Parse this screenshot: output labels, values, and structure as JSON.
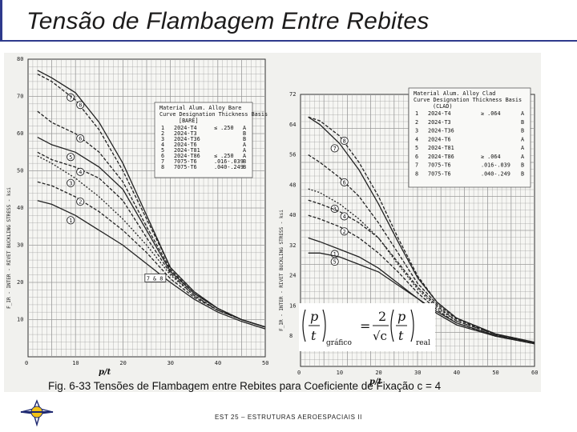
{
  "slide": {
    "title": "Tensão de Flambagem Entre Rebites",
    "caption": "Fig. 6-33   Tensões de Flambagem entre Rebites para Coeficiente de Fixação c = 4",
    "footer": "EST 25 – ESTRUTURAS AEROESPACIAIS II"
  },
  "colors": {
    "accent": "#2e3a8c",
    "grid": "#9a9a9a",
    "curve": "#222222"
  },
  "chart_data": [
    {
      "type": "line",
      "ylabel": "F_IR - INTER - RIVET BUCKLING STRESS - ksi",
      "xlabel": "p/t",
      "xlim": [
        0,
        50
      ],
      "ylim": [
        0,
        80
      ],
      "xticks": [
        0,
        10,
        20,
        30,
        40,
        50
      ],
      "yticks": [
        10,
        20,
        30,
        40,
        50,
        60,
        70,
        80
      ],
      "grid": true,
      "legend": {
        "position": "top-right",
        "header": [
          "Material Alum. Alloy Bare",
          "Curve  Designation  Thickness  Basis",
          "[BARE]"
        ],
        "rows": [
          {
            "curve": "1",
            "designation": "2024-T4",
            "thickness": "≤ .250",
            "basis": "A"
          },
          {
            "curve": "2",
            "designation": "2024-T3",
            "thickness": "",
            "basis": "B"
          },
          {
            "curve": "3",
            "designation": "2024-T36",
            "thickness": "",
            "basis": "B"
          },
          {
            "curve": "4",
            "designation": "2024-T6",
            "thickness": "",
            "basis": "A"
          },
          {
            "curve": "5",
            "designation": "2024-T81",
            "thickness": "",
            "basis": "A"
          },
          {
            "curve": "6",
            "designation": "2024-T86",
            "thickness": "≤ .250",
            "basis": "A"
          },
          {
            "curve": "7",
            "designation": "7075-T6",
            "thickness": ".016-.039",
            "basis": "B"
          },
          {
            "curve": "8",
            "designation": "7075-T6",
            "thickness": ".040-.249",
            "basis": "B"
          }
        ]
      },
      "series": [
        {
          "name": "1",
          "x": [
            2,
            5,
            10,
            15,
            20,
            25,
            30,
            35,
            40,
            45,
            50
          ],
          "y": [
            42,
            41,
            38,
            34,
            30,
            25,
            20,
            15.5,
            12,
            9.5,
            7.5
          ]
        },
        {
          "name": "2",
          "x": [
            2,
            5,
            10,
            15,
            20,
            25,
            30,
            35,
            40,
            45,
            50
          ],
          "y": [
            47,
            46,
            43,
            39,
            34,
            28,
            21,
            16,
            12.5,
            10,
            8
          ]
        },
        {
          "name": "3",
          "x": [
            2,
            5,
            10,
            15,
            20,
            25,
            30,
            35,
            40,
            45,
            50
          ],
          "y": [
            54,
            52,
            48,
            43,
            37,
            30,
            22,
            16.5,
            12.5,
            10,
            8
          ]
        },
        {
          "name": "4",
          "x": [
            2,
            5,
            10,
            15,
            20,
            25,
            30,
            35,
            40,
            45,
            50
          ],
          "y": [
            55,
            53,
            51,
            48,
            42,
            32,
            22.5,
            16.5,
            12.5,
            10,
            8
          ]
        },
        {
          "name": "5",
          "x": [
            2,
            5,
            10,
            15,
            20,
            25,
            30,
            35,
            40,
            45,
            50
          ],
          "y": [
            59,
            57,
            55,
            51,
            45,
            34,
            23,
            17,
            13,
            10,
            8
          ]
        },
        {
          "name": "6",
          "x": [
            2,
            5,
            10,
            15,
            20,
            25,
            30,
            35,
            40,
            45,
            50
          ],
          "y": [
            66,
            63,
            60,
            55,
            47,
            35,
            23.5,
            17,
            13,
            10,
            8
          ]
        },
        {
          "name": "7",
          "x": [
            2,
            5,
            10,
            15,
            20,
            25,
            30,
            35,
            40,
            45,
            50
          ],
          "y": [
            77,
            75,
            71,
            63,
            52,
            38,
            24,
            17.5,
            13,
            10,
            8
          ]
        },
        {
          "name": "8",
          "x": [
            2,
            5,
            10,
            15,
            20,
            25,
            30,
            35,
            40,
            45,
            50
          ],
          "y": [
            76,
            74,
            69,
            61,
            50,
            37,
            24,
            17.5,
            13,
            10,
            8
          ]
        }
      ],
      "marker": "7 & 8"
    },
    {
      "type": "line",
      "ylabel": "F_IR - INTER - RIVET BUCKLING STRESS - ksi",
      "xlabel": "p/t",
      "xlim": [
        0,
        60
      ],
      "ylim": [
        0,
        72
      ],
      "xticks": [
        0,
        10,
        20,
        30,
        40,
        50,
        60
      ],
      "yticks": [
        8,
        16,
        24,
        32,
        40,
        48,
        56,
        64,
        72
      ],
      "grid": true,
      "legend": {
        "position": "top-right",
        "header": [
          "Material Alum. Alloy Clad",
          "Curve  Designation  Thickness  Basis",
          "(CLAD)"
        ],
        "rows": [
          {
            "curve": "1",
            "designation": "2024-T4",
            "thickness": "≥ .064",
            "basis": "A"
          },
          {
            "curve": "2",
            "designation": "2024-T3",
            "thickness": "",
            "basis": "B"
          },
          {
            "curve": "3",
            "designation": "2024-T36",
            "thickness": "",
            "basis": "B"
          },
          {
            "curve": "4",
            "designation": "2024-T6",
            "thickness": "",
            "basis": "A"
          },
          {
            "curve": "5",
            "designation": "2024-T81",
            "thickness": "",
            "basis": "A"
          },
          {
            "curve": "6",
            "designation": "2024-T86",
            "thickness": "≥ .064",
            "basis": "A"
          },
          {
            "curve": "7",
            "designation": "7075-T6",
            "thickness": ".016-.039",
            "basis": "B"
          },
          {
            "curve": "8",
            "designation": "7075-T6",
            "thickness": ".040-.249",
            "basis": "B"
          }
        ]
      },
      "series": [
        {
          "name": "1",
          "x": [
            2,
            5,
            10,
            15,
            20,
            25,
            30,
            35,
            40,
            50,
            60
          ],
          "y": [
            34,
            33,
            31,
            29,
            26,
            22,
            18,
            14,
            11,
            8,
            6
          ]
        },
        {
          "name": "2",
          "x": [
            2,
            5,
            10,
            15,
            20,
            25,
            30,
            35,
            40,
            50,
            60
          ],
          "y": [
            40,
            39,
            37,
            34,
            30,
            25,
            19.5,
            15,
            11.5,
            8,
            6
          ]
        },
        {
          "name": "3",
          "x": [
            2,
            5,
            10,
            15,
            20,
            25,
            30,
            35,
            40,
            50,
            60
          ],
          "y": [
            47,
            46,
            43,
            39,
            34,
            27,
            20.5,
            15.5,
            12,
            8.5,
            6.2
          ]
        },
        {
          "name": "4",
          "x": [
            2,
            5,
            10,
            15,
            20,
            25,
            30,
            35,
            40,
            50,
            60
          ],
          "y": [
            44,
            43,
            41,
            38,
            34,
            27.5,
            21,
            16,
            12,
            8.5,
            6.2
          ]
        },
        {
          "name": "5",
          "x": [
            2,
            5,
            10,
            15,
            20,
            25,
            30,
            35,
            40,
            50,
            60
          ],
          "y": [
            30,
            30,
            29,
            27,
            25,
            21.5,
            18,
            14.5,
            11.5,
            8.2,
            6.1
          ]
        },
        {
          "name": "6",
          "x": [
            2,
            5,
            10,
            15,
            20,
            25,
            30,
            35,
            40,
            50,
            60
          ],
          "y": [
            56,
            54,
            50,
            45,
            38,
            30,
            22,
            16.5,
            12.5,
            8.5,
            6.3
          ]
        },
        {
          "name": "7",
          "x": [
            2,
            5,
            10,
            15,
            20,
            25,
            30,
            35,
            40,
            50,
            60
          ],
          "y": [
            66,
            64,
            59,
            52,
            43,
            33,
            23.5,
            17,
            12.8,
            8.6,
            6.4
          ]
        },
        {
          "name": "8",
          "x": [
            2,
            5,
            10,
            15,
            20,
            25,
            30,
            35,
            40,
            50,
            60
          ],
          "y": [
            66,
            65,
            61,
            54,
            45,
            34,
            24,
            17,
            12.8,
            8.6,
            6.4
          ]
        }
      ]
    }
  ],
  "formula": {
    "lhs_num": "p",
    "lhs_den": "t",
    "lhs_sub": "gráfico",
    "eq": "=",
    "frac_num": "2",
    "frac_den": "√c",
    "rhs_num": "p",
    "rhs_den": "t",
    "rhs_sub": "real"
  }
}
